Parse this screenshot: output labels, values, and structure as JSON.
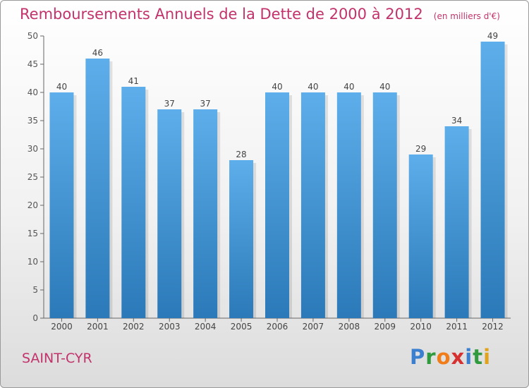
{
  "chart_data": {
    "type": "bar",
    "title": "Remboursements Annuels de la Dette de 2000 à 2012",
    "unit_note": "(en milliers d'€)",
    "categories": [
      "2000",
      "2001",
      "2002",
      "2003",
      "2004",
      "2005",
      "2006",
      "2007",
      "2008",
      "2009",
      "2010",
      "2011",
      "2012"
    ],
    "values": [
      40,
      46,
      41,
      37,
      37,
      28,
      40,
      40,
      40,
      40,
      29,
      34,
      49
    ],
    "ylim": [
      0,
      50
    ],
    "yticks": [
      0,
      5,
      10,
      15,
      20,
      25,
      30,
      35,
      40,
      45,
      50
    ],
    "grid": false,
    "bar_color": "#3f97d9",
    "xlabel": "",
    "ylabel": ""
  },
  "town": "SAINT-CYR",
  "brand": {
    "letters": [
      "P",
      "r",
      "o",
      "x",
      "i",
      "t",
      "i"
    ],
    "colors": [
      "#3b7fd0",
      "#2f9a3e",
      "#f07d1a",
      "#d63030",
      "#3b7fd0",
      "#2f9a3e",
      "#e0a31b"
    ]
  },
  "colors": {
    "accent": "#c2336b",
    "bar": "#3f97d9",
    "axis": "#666666"
  }
}
